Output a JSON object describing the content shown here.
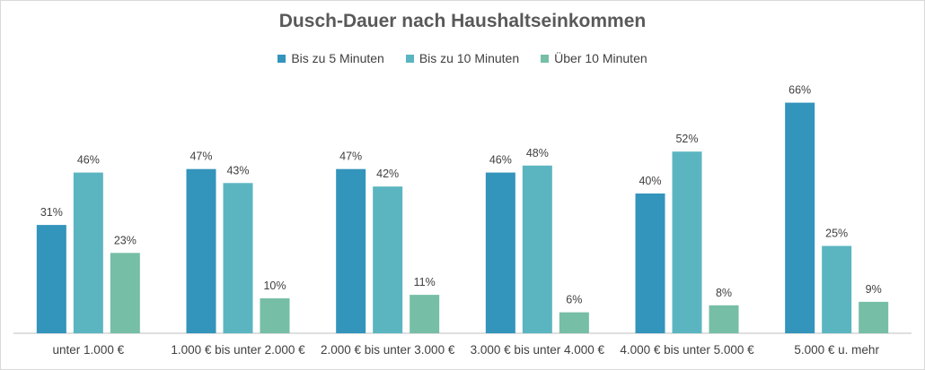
{
  "chart_data": {
    "type": "bar",
    "title": "Dusch-Dauer nach Haushaltseinkommen",
    "categories": [
      "unter 1.000 €",
      "1.000 € bis unter 2.000 €",
      "2.000 € bis unter 3.000 €",
      "3.000 € bis unter 4.000 €",
      "4.000 € bis unter 5.000 €",
      "5.000 € u. mehr"
    ],
    "series": [
      {
        "name": "Bis zu 5 Minuten",
        "values": [
          31,
          47,
          47,
          46,
          40,
          66
        ],
        "labels": [
          "31%",
          "47%",
          "47%",
          "46%",
          "40%",
          "66%"
        ],
        "color": "#3394bc"
      },
      {
        "name": "Bis zu 10 Minuten",
        "values": [
          46,
          43,
          42,
          48,
          52,
          25
        ],
        "labels": [
          "46%",
          "43%",
          "42%",
          "48%",
          "52%",
          "25%"
        ],
        "color": "#5bb5c1"
      },
      {
        "name": "Über 10 Minuten",
        "values": [
          23,
          10,
          11,
          6,
          8,
          9
        ],
        "labels": [
          "23%",
          "10%",
          "11%",
          "6%",
          "8%",
          "9%"
        ],
        "color": "#76bea6"
      }
    ],
    "ylim": [
      0,
      70
    ],
    "legend_position": "top",
    "grid": false
  }
}
